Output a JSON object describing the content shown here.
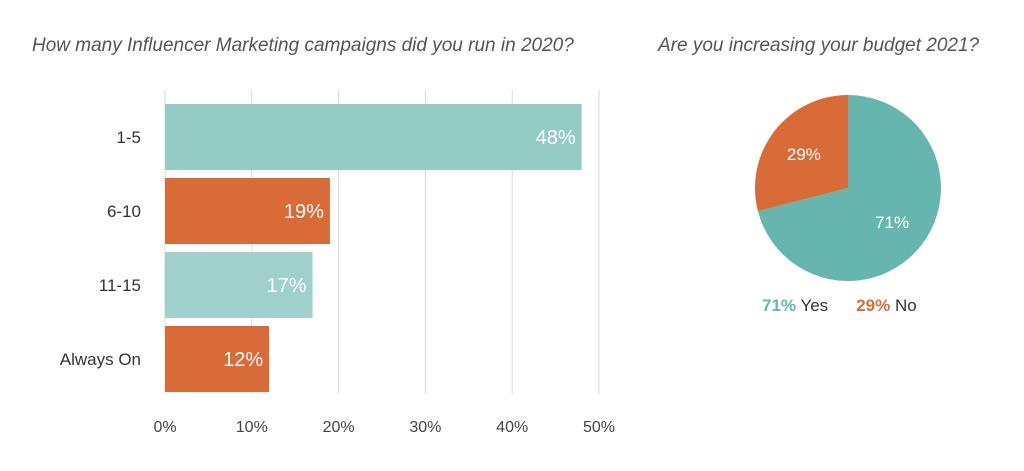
{
  "chart_data": [
    {
      "type": "bar",
      "orientation": "horizontal",
      "title": "How many Influencer Marketing campaigns did you run in 2020?",
      "categories": [
        "1-5",
        "6-10",
        "11-15",
        "Always On"
      ],
      "values": [
        48,
        19,
        17,
        12
      ],
      "value_labels": [
        "48%",
        "19%",
        "17%",
        "12%"
      ],
      "colors": [
        "#95cbc5",
        "#d96b38",
        "#9fd0cb",
        "#d96b38"
      ],
      "xlim": [
        0,
        50
      ],
      "xticks": [
        0,
        10,
        20,
        30,
        40,
        50
      ],
      "xtick_labels": [
        "0%",
        "10%",
        "20%",
        "30%",
        "40%",
        "50%"
      ],
      "grid": "vertical"
    },
    {
      "type": "pie",
      "title": "Are you increasing your budget 2021?",
      "slices": [
        {
          "label": "Yes",
          "value": 71,
          "value_label": "71%",
          "color": "#66b5ae"
        },
        {
          "label": "No",
          "value": 29,
          "value_label": "29%",
          "color": "#d96b38"
        }
      ],
      "legend": [
        {
          "pct": "71%",
          "label": "Yes",
          "color": "#66b5ae"
        },
        {
          "pct": "29%",
          "label": "No",
          "color": "#d96b38"
        }
      ],
      "legend_placement": "bottom"
    }
  ]
}
